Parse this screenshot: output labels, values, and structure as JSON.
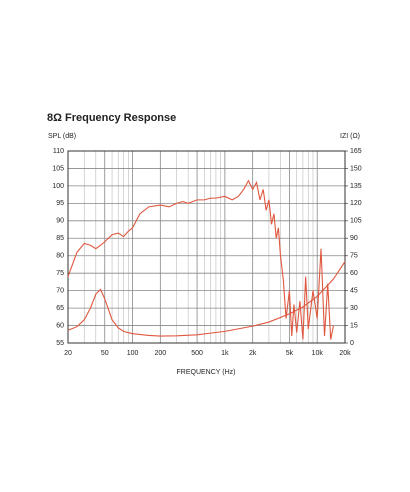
{
  "chart_data": {
    "type": "line",
    "title": "8Ω Frequency Response",
    "y_label": "SPL (dB)",
    "y2_label": "IZI (Ω)",
    "x_label": "FREQUENCY (Hz)",
    "log_x": true,
    "grid": true,
    "xlim": [
      20,
      20000
    ],
    "xticks": [
      20,
      50,
      100,
      200,
      500,
      {
        "value": 1000,
        "label": "1k"
      },
      {
        "value": 2000,
        "label": "2k"
      },
      {
        "value": 5000,
        "label": "5k"
      },
      {
        "value": 10000,
        "label": "10k"
      },
      {
        "value": 20000,
        "label": "20k"
      }
    ],
    "xminor_grid": [
      30,
      40,
      60,
      70,
      80,
      90,
      300,
      400,
      600,
      700,
      800,
      900,
      3000,
      4000,
      6000,
      7000,
      8000,
      9000
    ],
    "ylim": [
      55,
      110
    ],
    "yticks": [
      55,
      60,
      65,
      70,
      75,
      80,
      85,
      90,
      95,
      100,
      105,
      110
    ],
    "y2lim": [
      0,
      165
    ],
    "y2ticks": [
      0,
      15,
      30,
      45,
      60,
      75,
      90,
      105,
      120,
      135,
      150,
      165
    ],
    "series": [
      {
        "name": "SPL",
        "color": "#e0573f",
        "x": [
          20,
          25,
          30,
          35,
          40,
          45,
          50,
          60,
          70,
          80,
          90,
          100,
          120,
          150,
          200,
          250,
          300,
          350,
          400,
          500,
          600,
          700,
          800,
          1000,
          1200,
          1400,
          1600,
          1800,
          2000,
          2200,
          2400,
          2600,
          2800,
          3000,
          3200,
          3400,
          3600,
          3800,
          4000,
          4300,
          4600,
          5000,
          5300,
          5600,
          6000,
          6500,
          7000,
          7500,
          8000,
          9000,
          10000,
          11000,
          12000,
          13000,
          14000,
          15000
        ],
        "values": [
          74,
          81,
          83.5,
          83,
          82,
          83,
          84,
          86,
          86.5,
          85.5,
          87,
          88,
          92,
          94,
          94.5,
          94,
          95,
          95.5,
          95,
          96,
          96,
          96.5,
          96.5,
          97,
          96,
          97,
          99,
          101.5,
          99,
          101,
          96,
          99,
          93,
          96,
          89,
          92,
          85,
          88,
          80,
          73,
          62,
          70,
          57,
          66,
          58,
          67,
          56,
          74,
          59,
          70,
          62,
          82,
          57,
          72,
          56,
          60
        ]
      },
      {
        "name": "IZI",
        "color": "#e0573f",
        "axis": "y2",
        "x": [
          20,
          25,
          30,
          35,
          40,
          45,
          50,
          60,
          70,
          80,
          100,
          150,
          200,
          300,
          500,
          700,
          1000,
          2000,
          3000,
          5000,
          7000,
          10000,
          15000,
          20000
        ],
        "values": [
          11,
          14,
          20,
          30,
          42,
          46,
          38,
          20,
          13,
          10,
          8,
          6.5,
          6,
          6.2,
          7,
          8.5,
          10,
          14.5,
          18,
          25,
          31,
          40,
          55,
          70
        ]
      }
    ]
  }
}
